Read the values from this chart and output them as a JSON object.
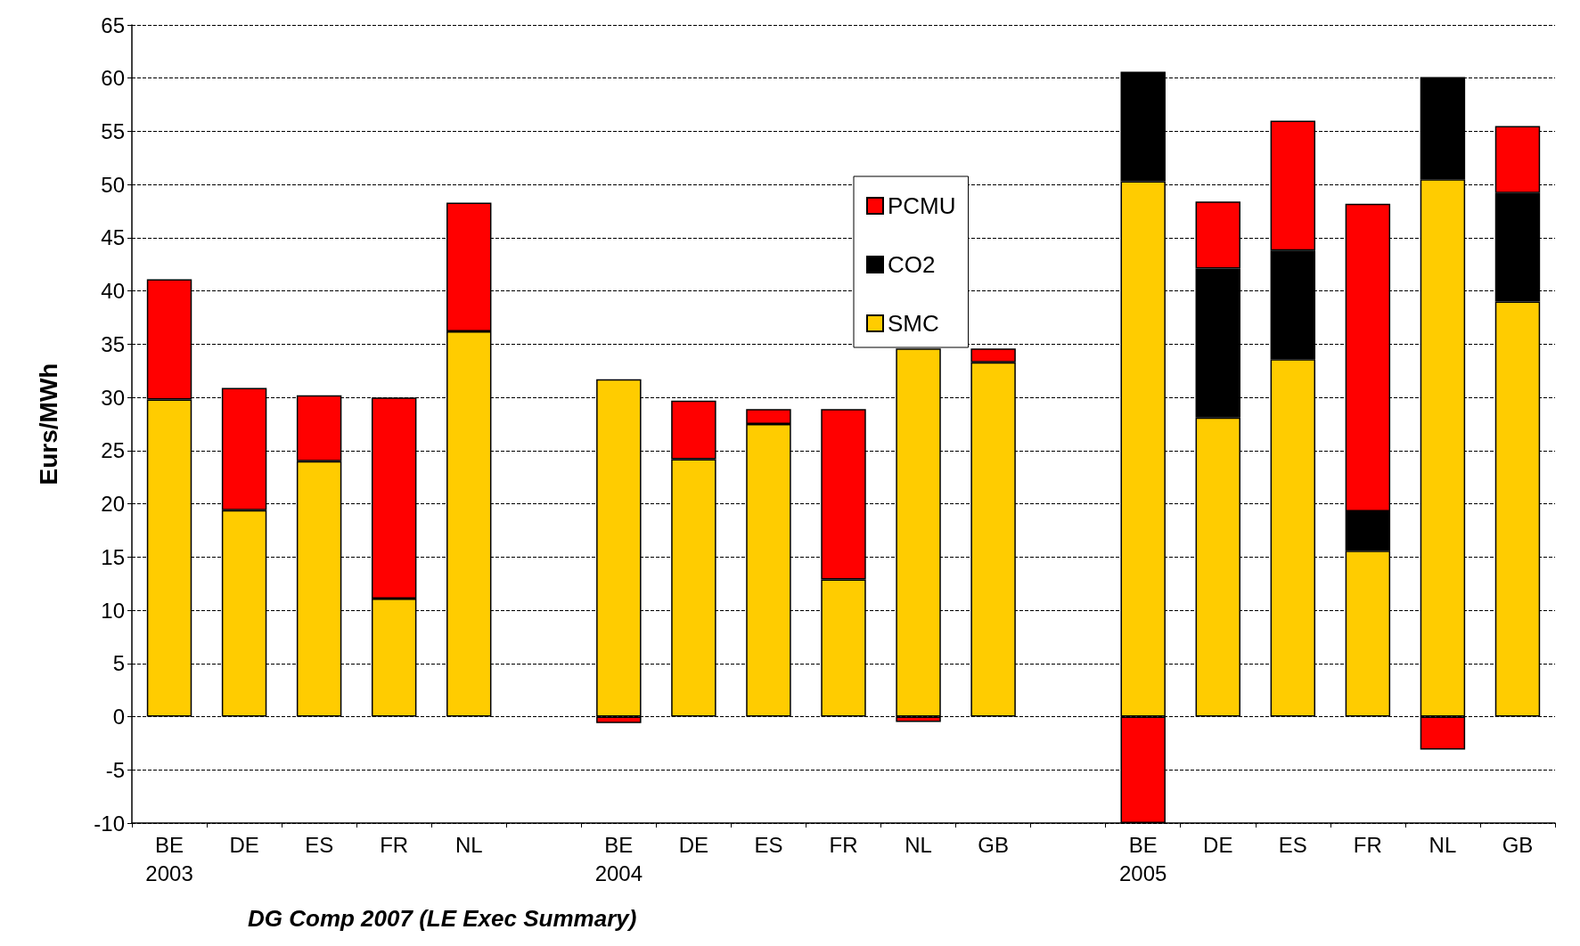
{
  "chart_data": {
    "type": "bar",
    "stacked": true,
    "ylabel": "Eurs/MWh",
    "annotations": [
      "DG Comp 2007 (LE Exec Summary)"
    ],
    "categories": [
      "BE\n2003",
      "DE",
      "ES",
      "FR",
      "NL",
      null,
      "BE\n2004",
      "DE",
      "ES",
      "FR",
      "NL",
      "GB",
      null,
      "BE\n2005",
      "DE",
      "ES",
      "FR",
      "NL",
      "GB"
    ],
    "series": [
      {
        "name": "SMC",
        "color": "#ffcc00",
        "values": [
          29.8,
          19.4,
          24.0,
          11.1,
          36.2,
          null,
          31.7,
          24.2,
          27.5,
          12.9,
          34.6,
          33.3,
          null,
          50.3,
          28.1,
          33.6,
          15.6,
          50.5,
          39.0
        ]
      },
      {
        "name": "CO2",
        "color": "#000000",
        "values": [
          null,
          null,
          null,
          null,
          null,
          null,
          null,
          null,
          null,
          null,
          null,
          null,
          null,
          10.3,
          14.0,
          10.2,
          3.7,
          9.6,
          10.2
        ]
      },
      {
        "name": "PCMU",
        "color": "#ff0000",
        "values": [
          11.3,
          11.5,
          6.2,
          18.9,
          12.1,
          null,
          -0.6,
          5.5,
          1.4,
          16.0,
          -0.5,
          1.3,
          null,
          -10,
          6.3,
          12.2,
          28.9,
          -3.1,
          6.3
        ]
      }
    ],
    "ylim": [
      -10,
      65
    ],
    "yticks": [
      -10,
      -5,
      0,
      5,
      10,
      15,
      20,
      25,
      30,
      35,
      40,
      45,
      50,
      55,
      60,
      65
    ],
    "grid": "y",
    "legend": "top"
  }
}
